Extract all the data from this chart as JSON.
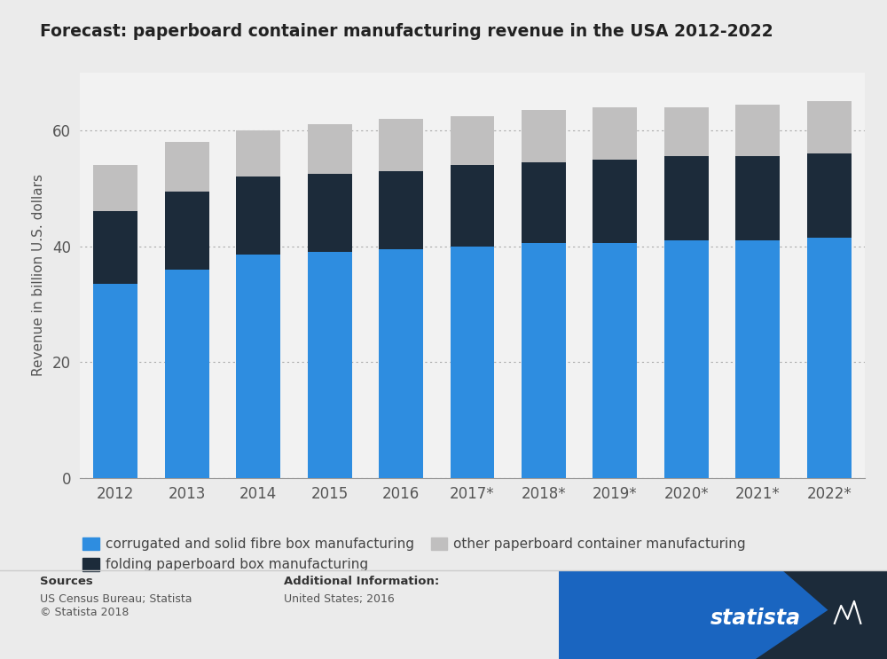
{
  "title": "Forecast: paperboard container manufacturing revenue in the USA 2012-2022",
  "ylabel": "Revenue in billion U.S. dollars",
  "categories": [
    "2012",
    "2013",
    "2014",
    "2015",
    "2016",
    "2017*",
    "2018*",
    "2019*",
    "2020*",
    "2021*",
    "2022*"
  ],
  "corrugated": [
    33.5,
    36.0,
    38.5,
    39.0,
    39.5,
    40.0,
    40.5,
    40.5,
    41.0,
    41.0,
    41.5
  ],
  "folding": [
    12.5,
    13.5,
    13.5,
    13.5,
    13.5,
    14.0,
    14.0,
    14.5,
    14.5,
    14.5,
    14.5
  ],
  "other": [
    8.0,
    8.5,
    8.0,
    8.5,
    9.0,
    8.5,
    9.0,
    9.0,
    8.5,
    9.0,
    9.0
  ],
  "color_corrugated": "#2e8de0",
  "color_folding": "#1c2b3a",
  "color_other": "#c0bfbf",
  "bg_color": "#ebebeb",
  "plot_bg_color": "#f2f2f2",
  "legend_corrugated": "corrugated and solid fibre box manufacturing",
  "legend_folding": "folding paperboard box manufacturing",
  "legend_other": "other paperboard container manufacturing",
  "sources_label": "Sources",
  "sources_body": "US Census Bureau; Statista\n© Statista 2018",
  "additional_label": "Additional Information:",
  "additional_body": "United States; 2016",
  "ylim": [
    0,
    70
  ],
  "yticks": [
    0,
    20,
    40,
    60
  ],
  "bar_width": 0.62
}
